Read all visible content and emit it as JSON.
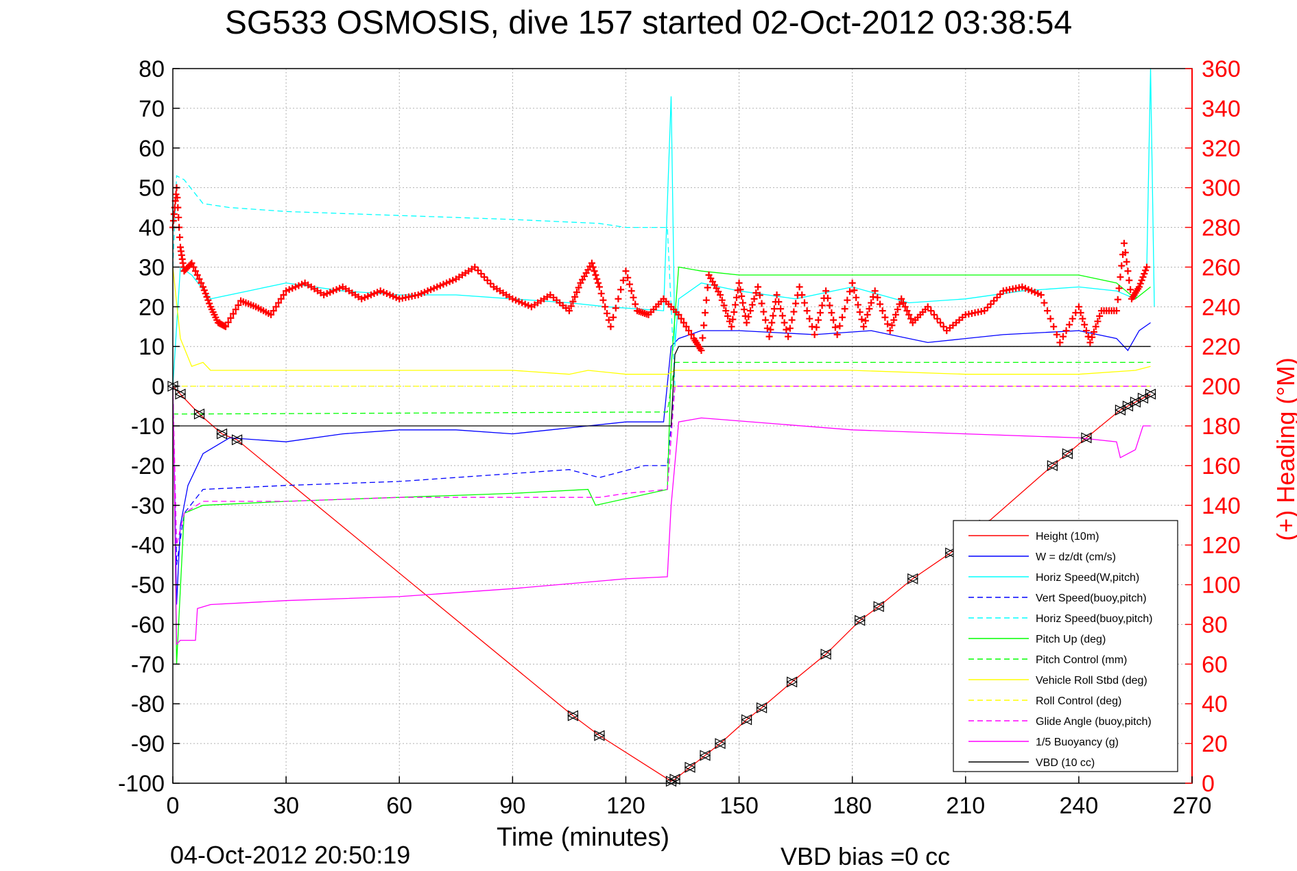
{
  "title": "SG533 OSMOSIS, dive 157 started 02-Oct-2012 03:38:54",
  "footer": {
    "timestamp": "04-Oct-2012 20:50:19",
    "vbd_bias": "VBD bias =0 cc"
  },
  "chart_data": {
    "type": "line",
    "xlabel": "Time (minutes)",
    "ylabel_left": "",
    "ylabel_right": "(+) Heading (°M)",
    "xlim": [
      0,
      270
    ],
    "ylim_left": [
      -100,
      80
    ],
    "ylim_right": [
      0,
      360
    ],
    "xticks": [
      0,
      30,
      60,
      90,
      120,
      150,
      180,
      210,
      240,
      270
    ],
    "yticks_left": [
      80,
      70,
      60,
      50,
      40,
      30,
      20,
      10,
      0,
      -10,
      -20,
      -30,
      -40,
      -50,
      -60,
      -70,
      -80,
      -90,
      -100
    ],
    "yticks_right": [
      360,
      340,
      320,
      300,
      280,
      260,
      240,
      220,
      200,
      180,
      160,
      140,
      120,
      100,
      80,
      60,
      40,
      20,
      0
    ],
    "grid": true,
    "legend_position": "bottom-right",
    "series": [
      {
        "name": "Height (10m)",
        "color": "#ff0000",
        "style": "solid",
        "x": [
          0,
          2,
          7,
          13,
          17,
          106,
          113,
          132,
          133,
          137,
          141,
          145,
          152,
          156,
          164,
          173,
          182,
          187,
          196,
          206,
          215,
          233,
          237,
          242,
          251,
          253,
          255,
          257,
          259
        ],
        "y": [
          0,
          -2,
          -7,
          -12,
          -13.5,
          -83,
          -88,
          -99.5,
          -99,
          -96,
          -93,
          -90,
          -84,
          -81,
          -74.5,
          -67.5,
          -59,
          -55.5,
          -48.5,
          -42,
          -35,
          -20,
          -17,
          -13,
          -6,
          -5,
          -4,
          -3,
          -2
        ]
      },
      {
        "name": "W = dz/dt (cm/s)",
        "color": "#0000ff",
        "style": "solid",
        "x": [
          0,
          1,
          2,
          4,
          8,
          15,
          30,
          45,
          60,
          75,
          90,
          100,
          110,
          120,
          130,
          132,
          134,
          140,
          150,
          170,
          185,
          200,
          220,
          240,
          250,
          253,
          256,
          259
        ],
        "y": [
          0,
          -55,
          -35,
          -25,
          -17,
          -13,
          -14,
          -12,
          -11,
          -11,
          -12,
          -11,
          -10,
          -9,
          -9,
          10,
          12,
          14,
          14,
          13,
          14,
          11,
          13,
          14,
          12,
          9,
          14,
          16
        ]
      },
      {
        "name": "Horiz Speed(W,pitch)",
        "color": "#00ffff",
        "style": "solid",
        "x": [
          0,
          2,
          5,
          10,
          20,
          30,
          45,
          60,
          75,
          90,
          105,
          115,
          130,
          132,
          133,
          134,
          140,
          150,
          165,
          180,
          195,
          210,
          225,
          240,
          250,
          255,
          258,
          259,
          260
        ],
        "y": [
          0,
          30,
          28,
          22,
          24,
          26,
          24,
          23,
          23,
          22,
          21,
          20,
          19,
          73,
          10,
          22,
          26,
          24,
          22,
          25,
          21,
          22,
          24,
          25,
          24,
          22,
          30,
          80,
          20
        ]
      },
      {
        "name": "Vert Speed(buoy,pitch)",
        "color": "#0000ff",
        "style": "dashed",
        "x": [
          0,
          1,
          3,
          8,
          30,
          60,
          90,
          105,
          113,
          125,
          131,
          133,
          259
        ],
        "y": [
          0,
          -45,
          -32,
          -26,
          -25,
          -24,
          -22,
          -21,
          -23,
          -20,
          -20,
          0,
          0
        ]
      },
      {
        "name": "Horiz Speed(buoy,pitch)",
        "color": "#00ffff",
        "style": "dashed",
        "x": [
          0,
          1,
          3,
          8,
          15,
          30,
          60,
          90,
          113,
          120,
          131,
          133,
          259
        ],
        "y": [
          30,
          53,
          52,
          46,
          45,
          44,
          43,
          42,
          41,
          40,
          40,
          0,
          0
        ]
      },
      {
        "name": "Pitch Up (deg)",
        "color": "#00ff00",
        "style": "solid",
        "x": [
          0,
          1,
          3,
          8,
          30,
          60,
          90,
          110,
          112,
          131,
          132,
          134,
          140,
          150,
          180,
          210,
          240,
          250,
          255,
          259
        ],
        "y": [
          0,
          -70,
          -32,
          -30,
          -29,
          -28,
          -27,
          -26,
          -30,
          -26,
          5,
          30,
          29,
          28,
          28,
          28,
          28,
          26,
          22,
          25
        ]
      },
      {
        "name": "Pitch Control (mm)",
        "color": "#00ff00",
        "style": "dashed",
        "x": [
          0,
          8,
          131,
          133,
          140,
          259
        ],
        "y": [
          -7,
          -7,
          -6.5,
          6,
          6,
          6
        ]
      },
      {
        "name": "Vehicle Roll Stbd (deg)",
        "color": "#ffff00",
        "style": "solid",
        "x": [
          0,
          2,
          5,
          8,
          10,
          30,
          60,
          90,
          105,
          110,
          120,
          131,
          133,
          150,
          180,
          210,
          240,
          255,
          259
        ],
        "y": [
          30,
          12,
          5,
          6,
          4,
          4,
          4,
          4,
          3,
          4,
          3,
          3,
          4,
          4,
          4,
          3,
          3,
          4,
          5
        ]
      },
      {
        "name": "Roll Control (deg)",
        "color": "#ffff00",
        "style": "dashed",
        "x": [
          0,
          259
        ],
        "y": [
          0,
          0
        ]
      },
      {
        "name": "Glide Angle (buoy,pitch)",
        "color": "#ff00ff",
        "style": "dashed",
        "x": [
          0,
          1,
          3,
          8,
          30,
          60,
          90,
          113,
          120,
          131,
          133,
          259
        ],
        "y": [
          0,
          -40,
          -32,
          -29,
          -29,
          -28,
          -28,
          -28,
          -27,
          -26,
          0,
          0
        ]
      },
      {
        "name": "1/5 Buoyancy (g)",
        "color": "#ff00ff",
        "style": "solid",
        "x": [
          0,
          1,
          2,
          6,
          6.5,
          10,
          30,
          60,
          90,
          120,
          131,
          132,
          134,
          140,
          180,
          210,
          240,
          250,
          251,
          255,
          257,
          259
        ],
        "y": [
          0,
          -65,
          -64,
          -64,
          -56,
          -55,
          -54,
          -53,
          -51,
          -48.5,
          -48,
          -30,
          -9,
          -8,
          -11,
          -12,
          -13,
          -14,
          -18,
          -16,
          -10,
          -10
        ]
      },
      {
        "name": "VBD (10 cc)",
        "color": "#000000",
        "style": "solid",
        "x": [
          0,
          1,
          132,
          133,
          134,
          259
        ],
        "y": [
          -10,
          -10,
          -10,
          8,
          10,
          10
        ]
      }
    ],
    "heading_series": {
      "name": "(+) Heading (°M)",
      "color": "#ff0000",
      "style": "plus",
      "axis": "right",
      "x": [
        0,
        1,
        2,
        3,
        5,
        8,
        10,
        12,
        14,
        18,
        22,
        26,
        30,
        35,
        40,
        45,
        50,
        55,
        60,
        65,
        70,
        75,
        80,
        85,
        90,
        95,
        100,
        105,
        108,
        111,
        113,
        116,
        120,
        123,
        126,
        130,
        134,
        138,
        140,
        142,
        145,
        148,
        150,
        152,
        155,
        158,
        160,
        163,
        166,
        170,
        173,
        176,
        180,
        183,
        186,
        190,
        193,
        196,
        200,
        205,
        210,
        215,
        220,
        225,
        230,
        235,
        240,
        243,
        246,
        250,
        252,
        254,
        256,
        258
      ],
      "y": [
        280,
        300,
        270,
        258,
        262,
        250,
        240,
        232,
        230,
        243,
        240,
        236,
        248,
        252,
        246,
        250,
        244,
        248,
        244,
        246,
        250,
        254,
        260,
        250,
        244,
        240,
        246,
        238,
        252,
        262,
        250,
        230,
        258,
        238,
        236,
        244,
        236,
        224,
        218,
        256,
        246,
        230,
        252,
        232,
        250,
        225,
        246,
        225,
        250,
        226,
        248,
        226,
        252,
        230,
        248,
        228,
        244,
        232,
        240,
        228,
        236,
        238,
        248,
        250,
        246,
        222,
        240,
        222,
        238,
        238,
        272,
        244,
        250,
        260
      ]
    }
  }
}
